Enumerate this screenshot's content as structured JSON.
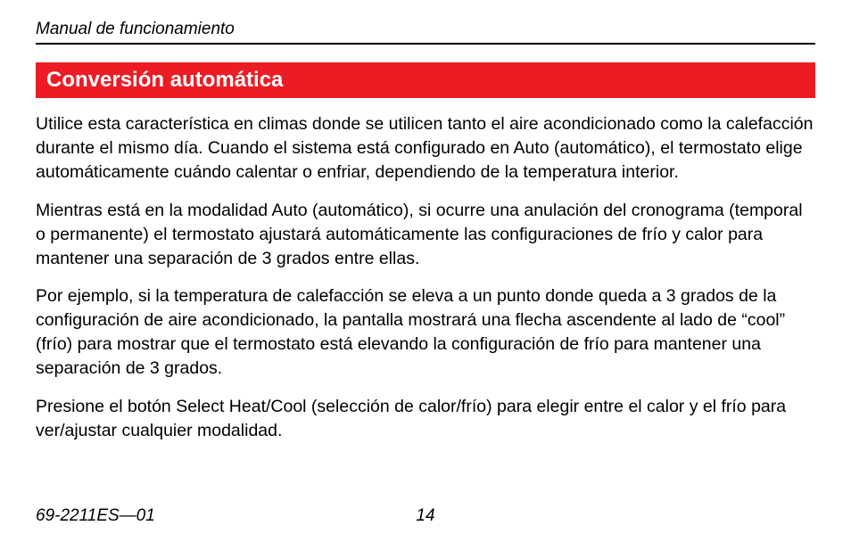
{
  "colors": {
    "section_title_bg": "#ed1c24",
    "section_title_fg": "#ffffff",
    "text_color": "#000000",
    "page_bg": "#ffffff",
    "rule_color": "#000000"
  },
  "typography": {
    "header_italic_size_pt": 14,
    "section_title_size_pt": 18,
    "body_size_pt": 14.5,
    "footer_size_pt": 14,
    "body_line_height": 1.38,
    "section_title_weight": "bold"
  },
  "header": {
    "manual_title": "Manual de funcionamiento"
  },
  "section": {
    "title": "Conversión automática",
    "paragraphs": [
      "Utilice esta característica en climas donde se utilicen tanto el aire acondicionado como la calefacción durante el mismo día. Cuando el sistema está configurado en Auto (automático), el termostato elige automáticamente cuándo calentar o enfriar, dependiendo de la temperatura interior.",
      "Mientras está en la modalidad Auto (automático), si ocurre una anulación del cronograma (temporal o permanente) el termostato ajustará automáticamente las configuraciones de frío y calor para mantener una separación de 3 grados entre ellas.",
      "Por ejemplo, si la temperatura de calefacción se eleva a un punto donde queda a 3 grados de la configuración de aire acondicionado, la pantalla mostrará una flecha ascendente al lado de “cool” (frío) para mostrar que el termostato está elevando la configuración de frío para mantener una separación de 3 grados.",
      "Presione el botón Select Heat/Cool (selección de calor/frío) para elegir entre el calor y el frío para ver/ajustar cualquier modalidad."
    ]
  },
  "footer": {
    "doc_id": "69-2211ES—01",
    "page_number": "14"
  }
}
